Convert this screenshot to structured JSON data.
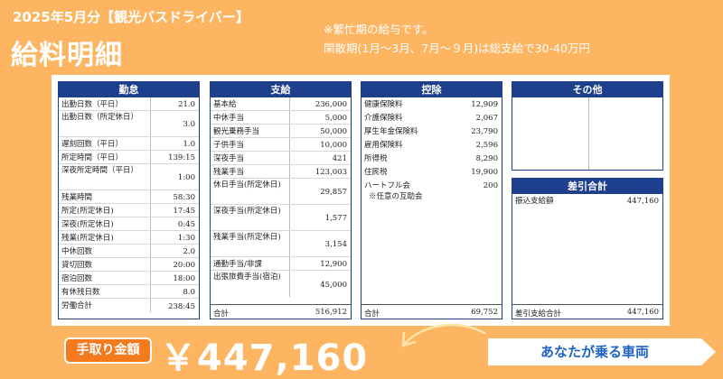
{
  "header": {
    "subtitle": "2025年5月分【観光バスドライバー】",
    "title": "給料明細",
    "note_lines": [
      "※繁忙期の給与です。",
      "閑散期(1月～3月、7月～９月)は総支給で30-40万円"
    ]
  },
  "attendance": {
    "title": "勤怠",
    "rows": [
      {
        "label": "出勤日数（平日）",
        "value": "21.0"
      },
      {
        "label": "出勤日数（所定休日）",
        "value": "3.0"
      },
      {
        "label": "遅刻回数（平日）",
        "value": "1.0"
      },
      {
        "label": "所定時間（平日）",
        "value": "139:15"
      },
      {
        "label": "深夜所定時間（平日）",
        "value": "1:00"
      },
      {
        "label": "残業時間",
        "value": "58:30"
      },
      {
        "label": "所定(所定休日)",
        "value": "17:45"
      },
      {
        "label": "深夜(所定休日)",
        "value": "0:45"
      },
      {
        "label": "残業(所定休日)",
        "value": "1:30"
      },
      {
        "label": "中休回数",
        "value": "2.0"
      },
      {
        "label": "貸切回数",
        "value": "20:00"
      },
      {
        "label": "宿泊回数",
        "value": "18:00"
      },
      {
        "label": "有休残日数",
        "value": "8.0"
      },
      {
        "label": "労働合計",
        "value": "238:45"
      }
    ]
  },
  "payment": {
    "title": "支給",
    "rows": [
      {
        "label": "基本給",
        "value": "236,000"
      },
      {
        "label": "中休手当",
        "value": "5,000"
      },
      {
        "label": "観光乗務手当",
        "value": "50,000"
      },
      {
        "label": "子供手当",
        "value": "10,000"
      },
      {
        "label": "深夜手当",
        "value": "421"
      },
      {
        "label": "残業手当",
        "value": "123,003"
      },
      {
        "label": "休日手当(所定休日)",
        "value": "29,857"
      },
      {
        "label": "深夜手当(所定休日)",
        "value": "1,577"
      },
      {
        "label": "残業手当(所定休日)",
        "value": "3,154"
      },
      {
        "label": "通勤手当/非課",
        "value": "12,900"
      },
      {
        "label": "出張旅費手当(宿泊)",
        "value": "45,000"
      }
    ],
    "total_label": "合計",
    "total_value": "516,912"
  },
  "deduction": {
    "title": "控除",
    "rows": [
      {
        "label": "健康保険料",
        "value": "12,909"
      },
      {
        "label": "介護保険料",
        "value": "2,067"
      },
      {
        "label": "厚生年金保険料",
        "value": "23,790"
      },
      {
        "label": "雇用保険料",
        "value": "2,596"
      },
      {
        "label": "所得税",
        "value": "8,290"
      },
      {
        "label": "住民税",
        "value": "19,900"
      }
    ],
    "extra_label": "ハートフル会",
    "extra_value": "200",
    "extra_note": "※任意の互助会",
    "total_label": "合計",
    "total_value": "69,752"
  },
  "other": {
    "title": "その他"
  },
  "net": {
    "title": "差引合計",
    "row_label": "振込支給額",
    "row_value": "447,160",
    "total_label": "差引支給合計",
    "total_value": "447,160"
  },
  "take_home": {
    "label": "手取り金額",
    "amount": "￥447,160"
  },
  "vehicle_label": "あなたが乗る車両",
  "colors": {
    "background": "#FDB562",
    "accent": "#F47A20",
    "panel_header": "#1e3f8c",
    "vehicle_text": "#1e63c4"
  }
}
